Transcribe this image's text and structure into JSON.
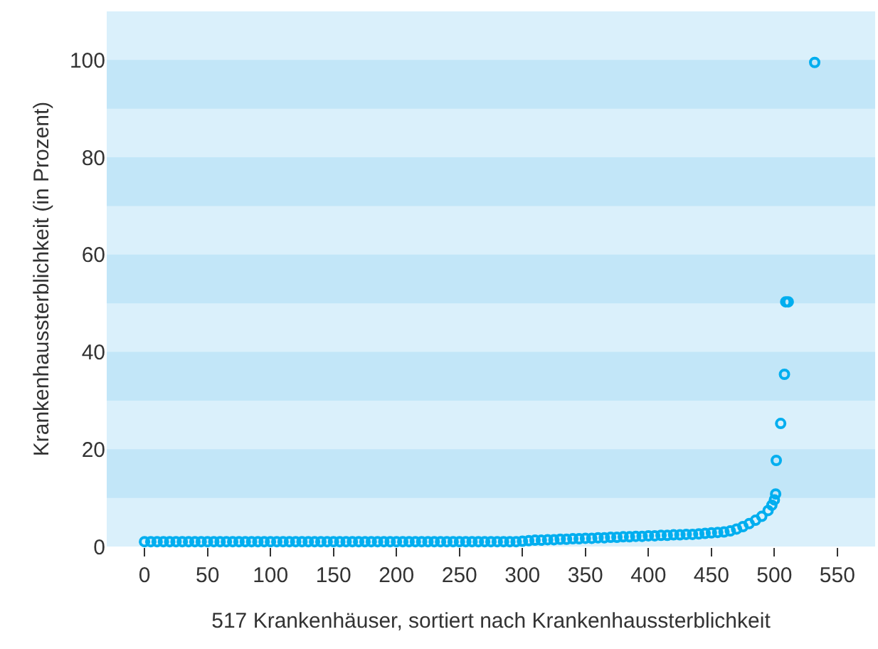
{
  "chart_data": {
    "type": "scatter",
    "xlabel": "517 Krankenhäuser, sortiert nach Krankenhaussterblichkeit",
    "ylabel": "Krankenhaussterblichkeit (in Prozent)",
    "x": [
      0,
      5,
      10,
      15,
      20,
      25,
      30,
      35,
      40,
      45,
      50,
      55,
      60,
      65,
      70,
      75,
      80,
      85,
      90,
      95,
      100,
      105,
      110,
      115,
      120,
      125,
      130,
      135,
      140,
      145,
      150,
      155,
      160,
      165,
      170,
      175,
      180,
      185,
      190,
      195,
      200,
      205,
      210,
      215,
      220,
      225,
      230,
      235,
      240,
      245,
      250,
      255,
      260,
      265,
      270,
      275,
      280,
      285,
      290,
      295,
      300,
      305,
      310,
      315,
      320,
      325,
      330,
      335,
      340,
      345,
      350,
      355,
      360,
      365,
      370,
      375,
      380,
      385,
      390,
      395,
      400,
      405,
      410,
      415,
      420,
      425,
      430,
      435,
      440,
      445,
      450,
      455,
      460,
      465,
      470,
      475,
      480,
      485,
      490,
      495,
      498,
      500,
      501,
      501.5,
      505,
      508,
      509,
      511,
      532
    ],
    "series": [
      {
        "color": "#00aeef",
        "values": [
          1.0,
          1.0,
          1.0,
          1.0,
          1.0,
          1.0,
          1.0,
          1.0,
          1.0,
          1.0,
          1.0,
          1.0,
          1.0,
          1.0,
          1.0,
          1.0,
          1.0,
          1.0,
          1.0,
          1.0,
          1.0,
          1.0,
          1.0,
          1.0,
          1.0,
          1.0,
          1.0,
          1.0,
          1.0,
          1.0,
          1.0,
          1.0,
          1.0,
          1.0,
          1.0,
          1.0,
          1.0,
          1.0,
          1.0,
          1.0,
          1.0,
          1.0,
          1.0,
          1.0,
          1.0,
          1.0,
          1.0,
          1.0,
          1.0,
          1.0,
          1.0,
          1.0,
          1.0,
          1.0,
          1.0,
          1.0,
          1.0,
          1.0,
          1.0,
          1.0,
          1.1,
          1.2,
          1.3,
          1.3,
          1.4,
          1.4,
          1.5,
          1.5,
          1.6,
          1.6,
          1.7,
          1.7,
          1.8,
          1.8,
          1.9,
          1.9,
          2.0,
          2.0,
          2.1,
          2.1,
          2.2,
          2.2,
          2.3,
          2.3,
          2.4,
          2.4,
          2.5,
          2.5,
          2.6,
          2.7,
          2.8,
          2.9,
          3.0,
          3.2,
          3.6,
          4.1,
          4.7,
          5.4,
          6.2,
          7.4,
          8.5,
          9.6,
          10.8,
          17.7,
          25.3,
          35.4,
          50.3,
          50.3,
          99.5
        ]
      }
    ],
    "xlim": [
      -30,
      580
    ],
    "xticks": [
      0,
      50,
      100,
      150,
      200,
      250,
      300,
      350,
      400,
      450,
      500,
      550
    ],
    "ylim": [
      0,
      110
    ],
    "yticks": [
      0,
      20,
      40,
      60,
      80,
      100
    ],
    "bands": [
      {
        "axis": "y",
        "from": 10,
        "to": 20,
        "color": "#c2e6f8"
      },
      {
        "axis": "y",
        "from": 30,
        "to": 40,
        "color": "#c2e6f8"
      },
      {
        "axis": "y",
        "from": 50,
        "to": 60,
        "color": "#c2e6f8"
      },
      {
        "axis": "y",
        "from": 70,
        "to": 80,
        "color": "#c2e6f8"
      },
      {
        "axis": "y",
        "from": 90,
        "to": 100,
        "color": "#c2e6f8"
      }
    ],
    "marker": "circle",
    "grid": false
  }
}
